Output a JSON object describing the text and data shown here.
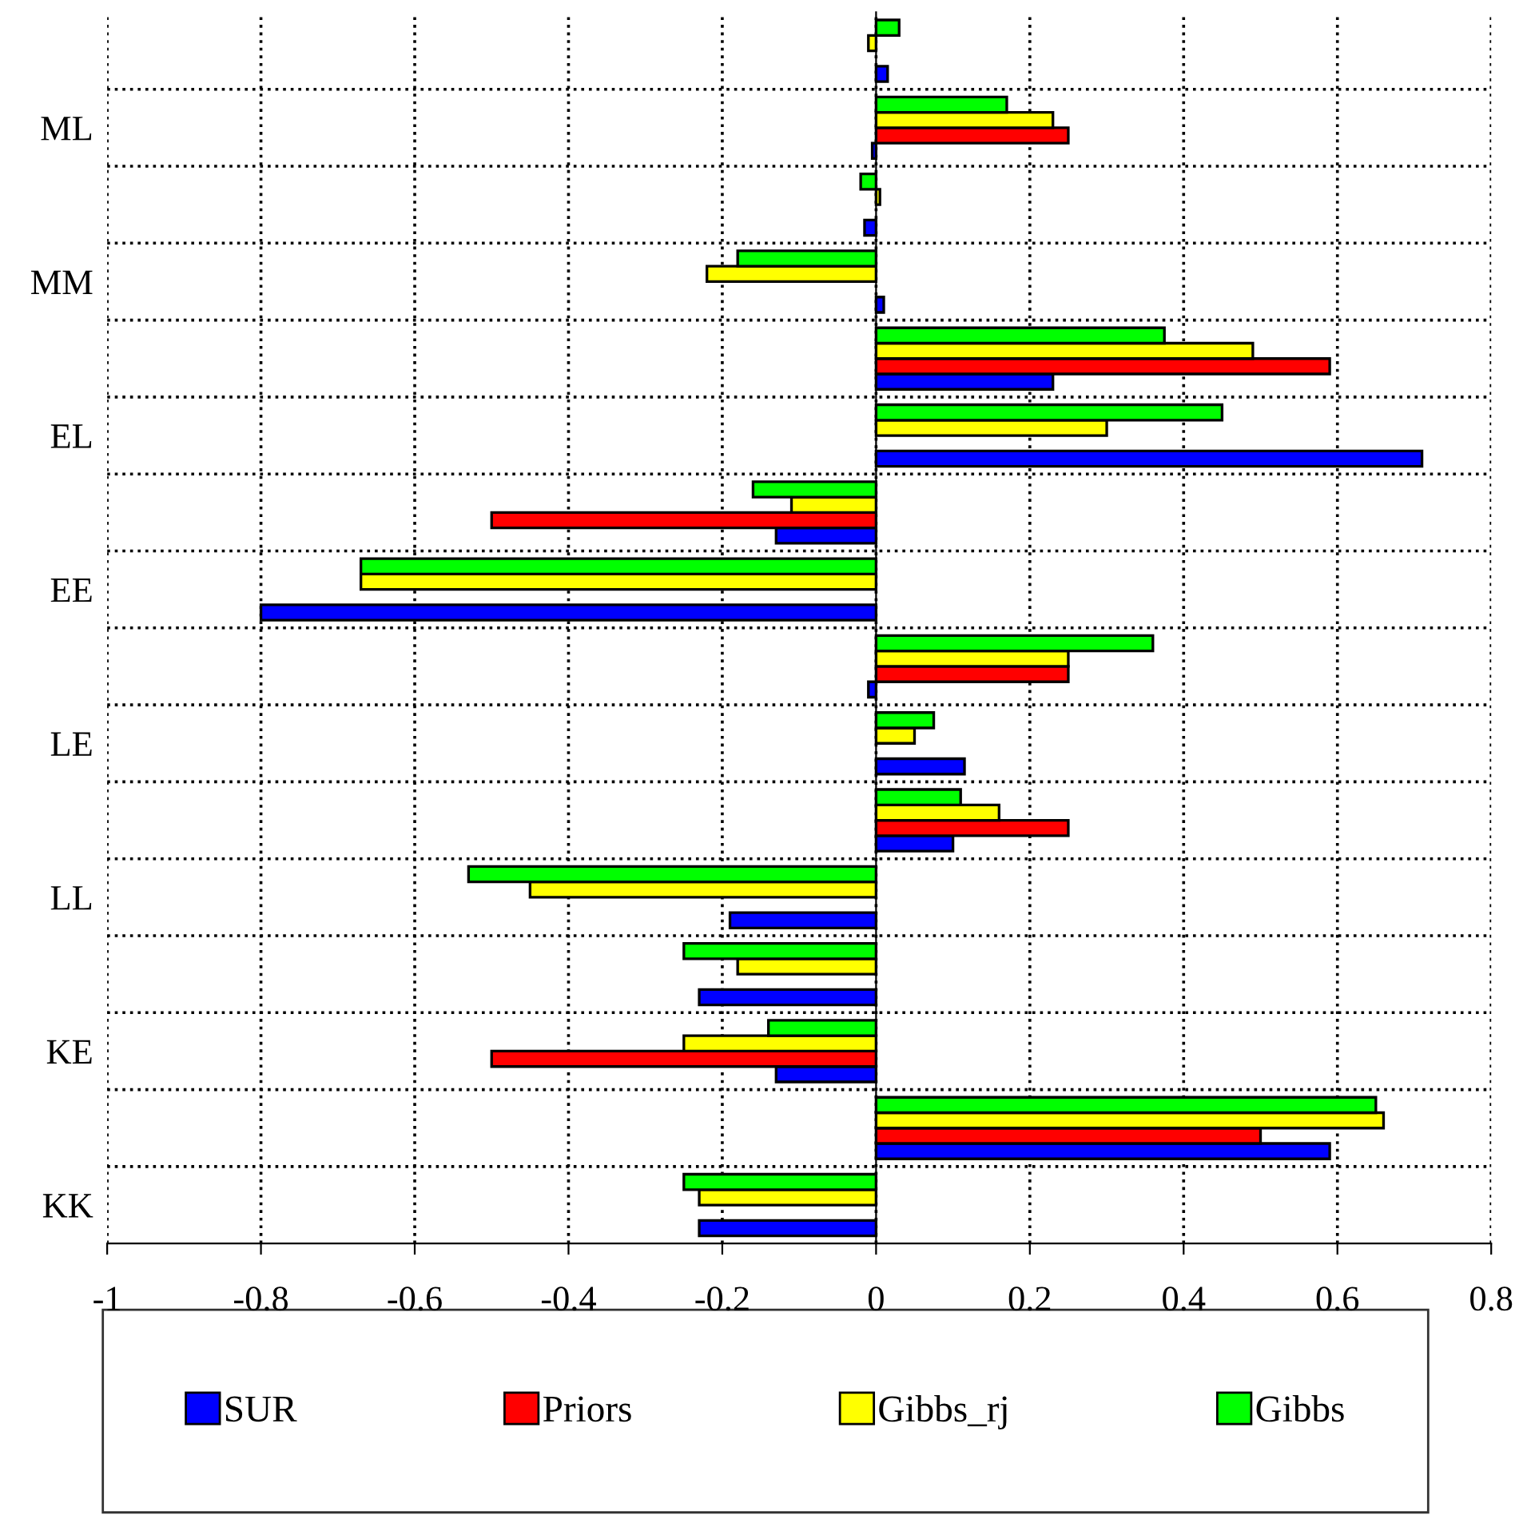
{
  "chart_data": {
    "type": "bar",
    "orientation": "horizontal",
    "categories": [
      null,
      "ML",
      null,
      "MM",
      null,
      "EL",
      null,
      "EE",
      null,
      "LE",
      null,
      "LL",
      null,
      "KE",
      null,
      "KK"
    ],
    "series": [
      {
        "name": "SUR",
        "color": "#0000ff",
        "values": [
          0.015,
          -0.005,
          -0.015,
          0.01,
          0.23,
          0.71,
          -0.13,
          -0.8,
          -0.01,
          0.115,
          0.1,
          -0.19,
          -0.23,
          -0.13,
          0.59,
          -0.23
        ]
      },
      {
        "name": "Priors",
        "color": "#ff0000",
        "values": [
          null,
          0.25,
          null,
          null,
          0.59,
          null,
          -0.5,
          null,
          0.25,
          null,
          0.25,
          null,
          null,
          -0.5,
          0.5,
          null
        ]
      },
      {
        "name": "Gibbs_rj",
        "color": "#ffff00",
        "values": [
          -0.01,
          0.23,
          0.005,
          -0.22,
          0.49,
          0.3,
          -0.11,
          -0.67,
          0.25,
          0.05,
          0.16,
          -0.45,
          -0.18,
          -0.25,
          0.66,
          -0.23
        ]
      },
      {
        "name": "Gibbs",
        "color": "#00ff00",
        "values": [
          0.03,
          0.17,
          -0.02,
          -0.18,
          0.375,
          0.45,
          -0.16,
          -0.67,
          0.36,
          0.075,
          0.11,
          -0.53,
          -0.25,
          -0.14,
          0.65,
          -0.25
        ]
      }
    ],
    "xlim": [
      -1,
      0.8
    ],
    "xticks": [
      -1,
      -0.8,
      -0.6,
      -0.4,
      -0.2,
      0,
      0.2,
      0.4,
      0.6,
      0.8
    ],
    "grid": true,
    "legend": "bottom"
  }
}
